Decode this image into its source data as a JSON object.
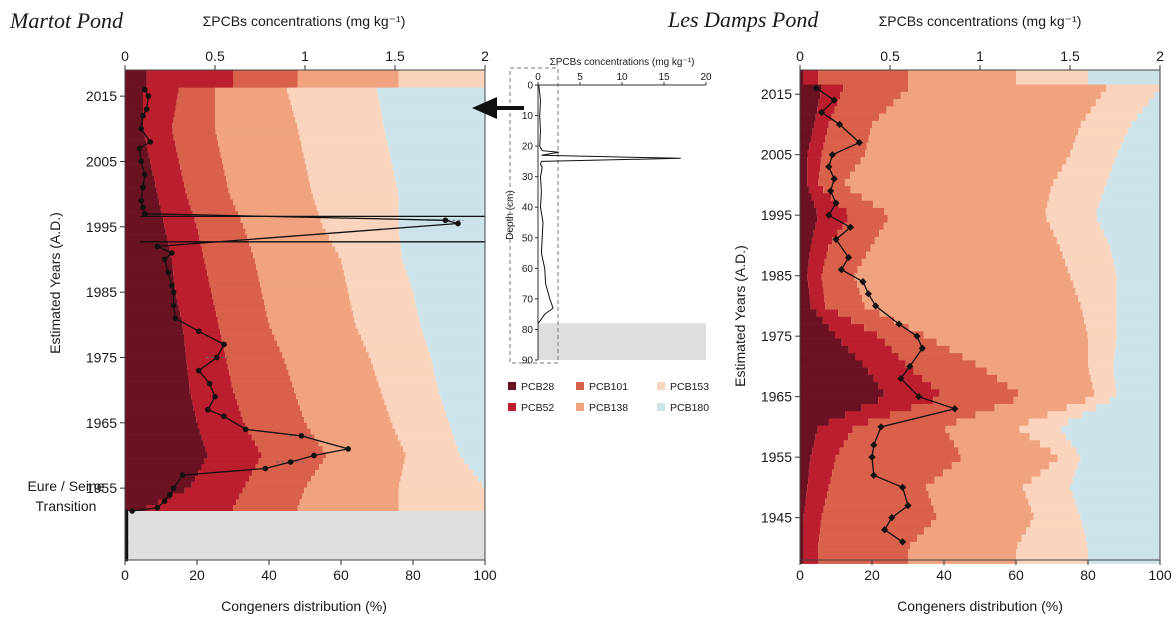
{
  "colors": {
    "PCB28": "#6b1222",
    "PCB52": "#bb1e2d",
    "PCB101": "#d9614c",
    "PCB138": "#f1a380",
    "PCB153": "#fbd4bd",
    "PCB180": "#cde3ea",
    "gap": "#dedede",
    "line": "#111111"
  },
  "chart_data": [
    {
      "type": "area",
      "title": "Martot Pond",
      "xlabel_bottom": "Congeners distribution (%)",
      "xlabel_top": "ΣPCBs concentrations (mg kg⁻¹)",
      "ylabel": "Estimated Years (A.D.)",
      "xlim_bottom": [
        0,
        100
      ],
      "xlim_top": [
        0,
        2
      ],
      "ylim": [
        1944,
        2019
      ],
      "ticks_bottom": [
        "0",
        "20",
        "40",
        "60",
        "80",
        "100"
      ],
      "ticks_top": [
        "0",
        "0.5",
        "1",
        "1.5",
        "2"
      ],
      "ticks_y": [
        "2015",
        "2005",
        "1995",
        "1985",
        "1975",
        "1965",
        "1955"
      ],
      "tick_years": [
        2015,
        2005,
        1995,
        1985,
        1975,
        1965,
        1955
      ],
      "annotation": "Eure / Seine Transition",
      "transition_year": 1951.5,
      "series_names": [
        "PCB28",
        "PCB52",
        "PCB101",
        "PCB138",
        "PCB153",
        "PCB180"
      ],
      "years": [
        2016,
        2010,
        2005,
        2000,
        1995,
        1990,
        1985,
        1980,
        1975,
        1970,
        1965,
        1960,
        1955,
        1952
      ],
      "cumulative": [
        [
          5,
          15,
          25,
          45,
          70,
          100
        ],
        [
          5,
          13,
          25,
          48,
          72,
          100
        ],
        [
          7,
          15,
          27,
          50,
          74,
          100
        ],
        [
          9,
          17,
          29,
          52,
          76,
          100
        ],
        [
          11,
          20,
          33,
          55,
          76,
          100
        ],
        [
          13,
          22,
          36,
          60,
          77,
          100
        ],
        [
          14,
          24,
          38,
          62,
          80,
          100
        ],
        [
          16,
          26,
          40,
          64,
          82,
          100
        ],
        [
          17,
          28,
          44,
          68,
          85,
          100
        ],
        [
          18,
          30,
          47,
          71,
          87,
          100
        ],
        [
          20,
          33,
          50,
          74,
          90,
          100
        ],
        [
          23,
          38,
          56,
          78,
          93,
          100
        ],
        [
          18,
          33,
          50,
          76,
          100,
          100
        ],
        [
          6,
          30,
          48,
          76,
          100,
          100
        ]
      ],
      "concentration": {
        "years": [
          2016,
          2015,
          2013,
          2012,
          2010,
          2008,
          2007,
          2005,
          2003,
          2001,
          1999,
          1998,
          1997,
          1996,
          1995.5,
          1992,
          1991,
          1990,
          1988,
          1986,
          1985,
          1983,
          1981,
          1979,
          1977,
          1975,
          1973,
          1971,
          1969,
          1967,
          1966,
          1964,
          1963,
          1961,
          1960,
          1959,
          1958,
          1957,
          1955,
          1954,
          1953,
          1952,
          1951.5
        ],
        "values": [
          0.11,
          0.13,
          0.12,
          0.1,
          0.09,
          0.14,
          0.08,
          0.09,
          0.11,
          0.1,
          0.09,
          0.1,
          0.11,
          1.78,
          1.85,
          0.18,
          0.26,
          0.22,
          0.24,
          0.26,
          0.27,
          0.27,
          0.28,
          0.41,
          0.55,
          0.51,
          0.41,
          0.47,
          0.5,
          0.46,
          0.55,
          0.67,
          0.98,
          1.24,
          1.05,
          0.92,
          0.78,
          0.32,
          0.27,
          0.25,
          0.22,
          0.18,
          0.04
        ]
      },
      "errors": {
        "years": [
          1996,
          1975,
          1963,
          1959
        ],
        "values": [
          1.78,
          0.51,
          0.98,
          0.92
        ],
        "err": [
          0.1,
          0.06,
          0.07,
          0.08
        ]
      }
    },
    {
      "type": "line",
      "inset": true,
      "xlabel": "ΣPCBs concentrations (mg kg⁻¹)",
      "ylabel": "Depth (cm)",
      "xlim": [
        0,
        20
      ],
      "ylim": [
        0,
        90
      ],
      "ticks_x": [
        "0",
        "5",
        "10",
        "15",
        "20"
      ],
      "ticks_y": [
        "0",
        "10",
        "20",
        "30",
        "40",
        "50",
        "60",
        "70",
        "80",
        "90"
      ],
      "shaded_depth": [
        78,
        90
      ],
      "depth": [
        0,
        5,
        10,
        15,
        20,
        21.5,
        22,
        23,
        24,
        25,
        26,
        27,
        30,
        35,
        40,
        45,
        50,
        55,
        60,
        65,
        70,
        73,
        75,
        77,
        78
      ],
      "value": [
        0.1,
        0.3,
        0.2,
        0.3,
        0.2,
        0.5,
        2.5,
        0.4,
        17.0,
        0.4,
        0.3,
        0.5,
        0.3,
        0.4,
        0.3,
        0.6,
        0.5,
        0.4,
        0.8,
        0.9,
        1.4,
        1.8,
        0.8,
        0.3,
        0.0
      ]
    },
    {
      "type": "area",
      "title": "Les Damps Pond",
      "xlabel_bottom": "Congeners distribution (%)",
      "xlabel_top": "ΣPCBs concentrations (mg kg⁻¹)",
      "ylabel": "Estimated Years (A.D.)",
      "xlim_bottom": [
        0,
        100
      ],
      "xlim_top": [
        0,
        2
      ],
      "ylim": [
        1938,
        2019
      ],
      "ticks_bottom": [
        "0",
        "20",
        "40",
        "60",
        "80",
        "100"
      ],
      "ticks_top": [
        "0",
        "0.5",
        "1",
        "1.5",
        "2"
      ],
      "ticks_y": [
        "2015",
        "2005",
        "1995",
        "1985",
        "1975",
        "1965",
        "1955",
        "1945"
      ],
      "tick_years": [
        2015,
        2005,
        1995,
        1985,
        1975,
        1965,
        1955,
        1945
      ],
      "series_names": [
        "PCB28",
        "PCB52",
        "PCB101",
        "PCB138",
        "PCB153",
        "PCB180"
      ],
      "years": [
        2016,
        2010,
        2005,
        2000,
        1995,
        1990,
        1985,
        1980,
        1975,
        1970,
        1965,
        1960,
        1955,
        1950,
        1945,
        1940
      ],
      "cumulative": [
        [
          6,
          12,
          30,
          85,
          100,
          100
        ],
        [
          4,
          8,
          20,
          78,
          92,
          100
        ],
        [
          2,
          6,
          18,
          75,
          88,
          100
        ],
        [
          2,
          5,
          12,
          70,
          85,
          100
        ],
        [
          5,
          14,
          25,
          68,
          82,
          100
        ],
        [
          3,
          8,
          20,
          72,
          86,
          100
        ],
        [
          2,
          6,
          15,
          75,
          88,
          100
        ],
        [
          3,
          7,
          18,
          78,
          88,
          100
        ],
        [
          10,
          22,
          35,
          80,
          88,
          100
        ],
        [
          18,
          30,
          50,
          80,
          87,
          100
        ],
        [
          24,
          40,
          62,
          82,
          88,
          100
        ],
        [
          5,
          15,
          40,
          60,
          72,
          100
        ],
        [
          3,
          10,
          45,
          72,
          78,
          100
        ],
        [
          2,
          8,
          35,
          62,
          75,
          100
        ],
        [
          1,
          6,
          38,
          65,
          78,
          100
        ],
        [
          1,
          5,
          30,
          60,
          80,
          100
        ]
      ],
      "concentration": {
        "years": [
          2016,
          2014,
          2012,
          2010,
          2007,
          2005,
          2003,
          2001,
          1999,
          1997,
          1995,
          1993,
          1991,
          1988,
          1986,
          1984,
          1982,
          1980,
          1977,
          1975,
          1973,
          1970,
          1968,
          1965,
          1963,
          1960,
          1957,
          1955,
          1952,
          1950,
          1947,
          1945,
          1943,
          1941
        ],
        "values": [
          0.09,
          0.19,
          0.12,
          0.22,
          0.33,
          0.18,
          0.16,
          0.19,
          0.17,
          0.2,
          0.16,
          0.28,
          0.2,
          0.27,
          0.23,
          0.35,
          0.38,
          0.42,
          0.55,
          0.65,
          0.68,
          0.61,
          0.56,
          0.66,
          0.86,
          0.45,
          0.41,
          0.4,
          0.41,
          0.57,
          0.6,
          0.51,
          0.47,
          0.57
        ]
      }
    }
  ]
}
